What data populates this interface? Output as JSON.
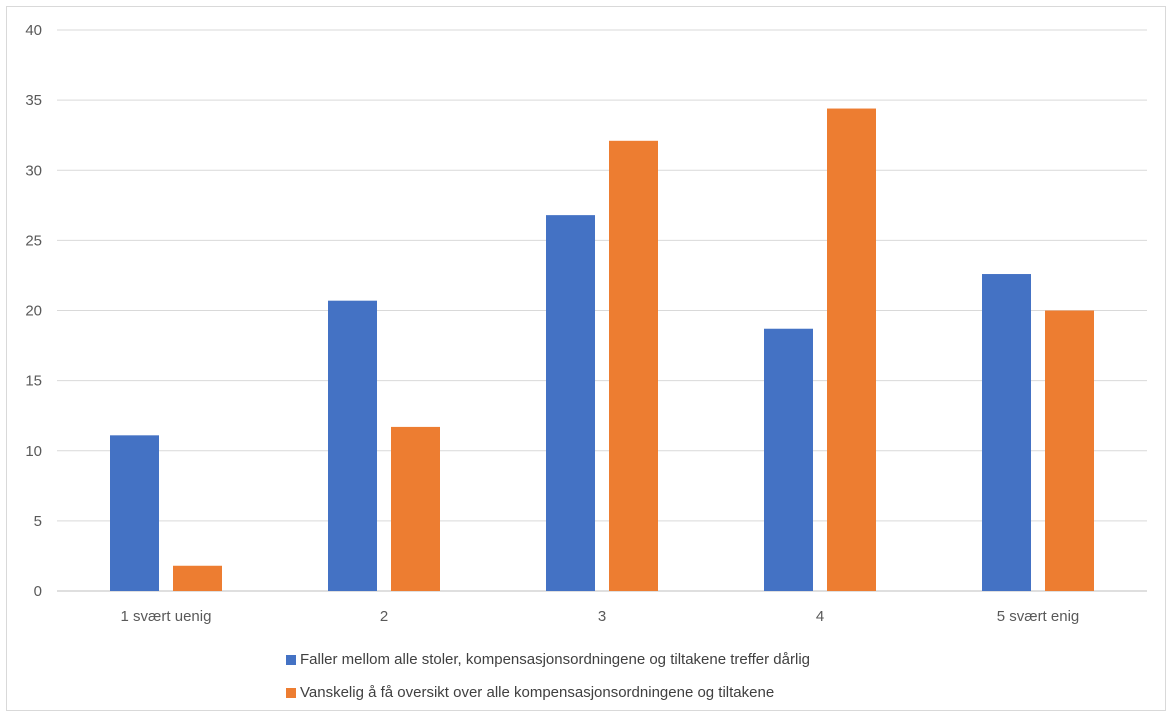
{
  "chart_data": {
    "type": "bar",
    "categories": [
      "1 svært uenig",
      "2",
      "3",
      "4",
      "5 svært enig"
    ],
    "series": [
      {
        "name": "Faller mellom alle stoler, kompensasjonsordningene og tiltakene treffer dårlig",
        "values": [
          11.1,
          20.7,
          26.8,
          18.7,
          22.6
        ],
        "color": "#4472C4"
      },
      {
        "name": "Vanskelig å få oversikt over alle kompensasjonsordningene og tiltakene",
        "values": [
          1.8,
          11.7,
          32.1,
          34.4,
          20.0
        ],
        "color": "#ED7D31"
      }
    ],
    "yticks": [
      "0",
      "5",
      "10",
      "15",
      "20",
      "25",
      "30",
      "35",
      "40"
    ],
    "ylim": [
      0,
      40
    ],
    "grid": true,
    "legend_position": "bottom"
  }
}
